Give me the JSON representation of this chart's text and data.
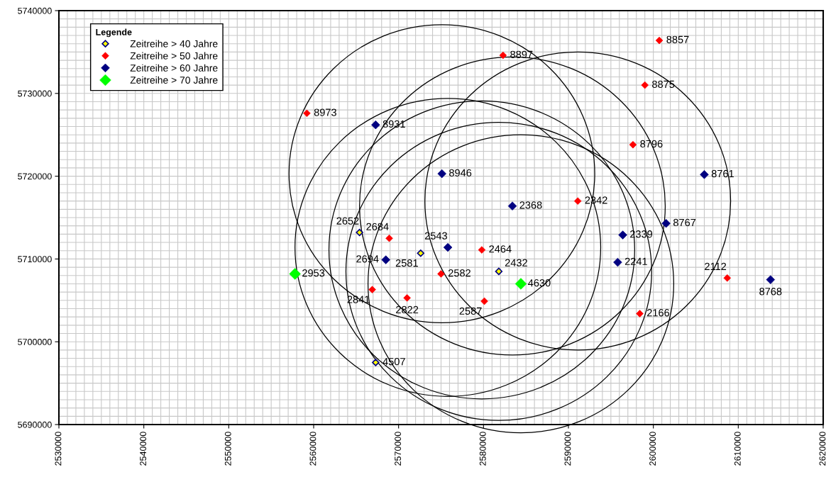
{
  "chart_data": {
    "type": "scatter",
    "legend_title": "Legende",
    "legend": "top left",
    "grid": true,
    "marker": "diamond",
    "xlim": [
      2530000,
      2620000
    ],
    "ylim": [
      5690000,
      5740000
    ],
    "xticks": [
      2530000,
      {
        "value": 2531000,
        "label": null
      },
      {
        "value": 2532000,
        "label": null
      },
      {
        "value": 2533000,
        "label": null
      },
      {
        "value": 2534000,
        "label": null
      },
      {
        "value": 2535000,
        "label": null
      },
      {
        "value": 2536000,
        "label": null
      },
      {
        "value": 2537000,
        "label": null
      },
      {
        "value": 2538000,
        "label": null
      },
      {
        "value": 2539000,
        "label": null
      },
      2540000,
      {
        "value": 2541000,
        "label": null
      },
      {
        "value": 2542000,
        "label": null
      },
      {
        "value": 2543000,
        "label": null
      },
      {
        "value": 2544000,
        "label": null
      },
      {
        "value": 2545000,
        "label": null
      },
      {
        "value": 2546000,
        "label": null
      },
      {
        "value": 2547000,
        "label": null
      },
      {
        "value": 2548000,
        "label": null
      },
      {
        "value": 2549000,
        "label": null
      },
      2550000,
      {
        "value": 2551000,
        "label": null
      },
      {
        "value": 2552000,
        "label": null
      },
      {
        "value": 2553000,
        "label": null
      },
      {
        "value": 2554000,
        "label": null
      },
      {
        "value": 2555000,
        "label": null
      },
      {
        "value": 2556000,
        "label": null
      },
      {
        "value": 2557000,
        "label": null
      },
      {
        "value": 2558000,
        "label": null
      },
      {
        "value": 2559000,
        "label": null
      },
      2560000,
      {
        "value": 2561000,
        "label": null
      },
      {
        "value": 2562000,
        "label": null
      },
      {
        "value": 2563000,
        "label": null
      },
      {
        "value": 2564000,
        "label": null
      },
      {
        "value": 2565000,
        "label": null
      },
      {
        "value": 2566000,
        "label": null
      },
      {
        "value": 2567000,
        "label": null
      },
      {
        "value": 2568000,
        "label": null
      },
      {
        "value": 2569000,
        "label": null
      },
      2570000,
      {
        "value": 2571000,
        "label": null
      },
      {
        "value": 2572000,
        "label": null
      },
      {
        "value": 2573000,
        "label": null
      },
      {
        "value": 2574000,
        "label": null
      },
      {
        "value": 2575000,
        "label": null
      },
      {
        "value": 2576000,
        "label": null
      },
      {
        "value": 2577000,
        "label": null
      },
      {
        "value": 2578000,
        "label": null
      },
      {
        "value": 2579000,
        "label": null
      },
      2580000,
      {
        "value": 2581000,
        "label": null
      },
      {
        "value": 2582000,
        "label": null
      },
      {
        "value": 2583000,
        "label": null
      },
      {
        "value": 2584000,
        "label": null
      },
      {
        "value": 2585000,
        "label": null
      },
      {
        "value": 2586000,
        "label": null
      },
      {
        "value": 2587000,
        "label": null
      },
      {
        "value": 2588000,
        "label": null
      },
      {
        "value": 2589000,
        "label": null
      },
      2590000,
      {
        "value": 2591000,
        "label": null
      },
      {
        "value": 2592000,
        "label": null
      },
      {
        "value": 2593000,
        "label": null
      },
      {
        "value": 2594000,
        "label": null
      },
      {
        "value": 2595000,
        "label": null
      },
      {
        "value": 2596000,
        "label": null
      },
      {
        "value": 2597000,
        "label": null
      },
      {
        "value": 2598000,
        "label": null
      },
      {
        "value": 2599000,
        "label": null
      },
      2600000,
      {
        "value": 2601000,
        "label": null
      },
      {
        "value": 2602000,
        "label": null
      },
      {
        "value": 2603000,
        "label": null
      },
      {
        "value": 2604000,
        "label": null
      },
      {
        "value": 2605000,
        "label": null
      },
      {
        "value": 2606000,
        "label": null
      },
      {
        "value": 2607000,
        "label": null
      },
      {
        "value": 2608000,
        "label": null
      },
      {
        "value": 2609000,
        "label": null
      },
      2610000,
      {
        "value": 2611000,
        "label": null
      },
      {
        "value": 2612000,
        "label": null
      },
      {
        "value": 2613000,
        "label": null
      },
      {
        "value": 2614000,
        "label": null
      },
      {
        "value": 2615000,
        "label": null
      },
      {
        "value": 2616000,
        "label": null
      },
      {
        "value": 2617000,
        "label": null
      },
      {
        "value": 2618000,
        "label": null
      },
      {
        "value": 2619000,
        "label": null
      },
      2620000
    ],
    "yticks": [
      5690000,
      {
        "value": 5691000,
        "label": null
      },
      {
        "value": 5692000,
        "label": null
      },
      {
        "value": 5693000,
        "label": null
      },
      {
        "value": 5694000,
        "label": null
      },
      {
        "value": 5695000,
        "label": null
      },
      {
        "value": 5696000,
        "label": null
      },
      {
        "value": 5697000,
        "label": null
      },
      {
        "value": 5698000,
        "label": null
      },
      {
        "value": 5699000,
        "label": null
      },
      5700000,
      {
        "value": 5701000,
        "label": null
      },
      {
        "value": 5702000,
        "label": null
      },
      {
        "value": 5703000,
        "label": null
      },
      {
        "value": 5704000,
        "label": null
      },
      {
        "value": 5705000,
        "label": null
      },
      {
        "value": 5706000,
        "label": null
      },
      {
        "value": 5707000,
        "label": null
      },
      {
        "value": 5708000,
        "label": null
      },
      {
        "value": 5709000,
        "label": null
      },
      5710000,
      {
        "value": 5711000,
        "label": null
      },
      {
        "value": 5712000,
        "label": null
      },
      {
        "value": 5713000,
        "label": null
      },
      {
        "value": 5714000,
        "label": null
      },
      {
        "value": 5715000,
        "label": null
      },
      {
        "value": 5716000,
        "label": null
      },
      {
        "value": 5717000,
        "label": null
      },
      {
        "value": 5718000,
        "label": null
      },
      {
        "value": 5719000,
        "label": null
      },
      5720000,
      {
        "value": 5721000,
        "label": null
      },
      {
        "value": 5722000,
        "label": null
      },
      {
        "value": 5723000,
        "label": null
      },
      {
        "value": 5724000,
        "label": null
      },
      {
        "value": 5725000,
        "label": null
      },
      {
        "value": 5726000,
        "label": null
      },
      {
        "value": 5727000,
        "label": null
      },
      {
        "value": 5728000,
        "label": null
      },
      {
        "value": 5729000,
        "label": null
      },
      5730000,
      {
        "value": 5731000,
        "label": null
      },
      {
        "value": 5732000,
        "label": null
      },
      {
        "value": 5733000,
        "label": null
      },
      {
        "value": 5734000,
        "label": null
      },
      {
        "value": 5735000,
        "label": null
      },
      {
        "value": 5736000,
        "label": null
      },
      {
        "value": 5737000,
        "label": null
      },
      {
        "value": 5738000,
        "label": null
      },
      {
        "value": 5739000,
        "label": null
      },
      5740000
    ],
    "series": [
      {
        "name": "Zeitreihe > 40 Jahre",
        "color": "#ffff00",
        "x": [
          2565400,
          2572600,
          2581800,
          2567300
        ],
        "values": [
          5713200,
          5710700,
          5708500,
          5697500
        ]
      },
      {
        "name": "Zeitreihe > 50 Jahre",
        "color": "#ff0000",
        "x": [
          2582300,
          2600700,
          2599000,
          2559200,
          2597600,
          2591100,
          2568900,
          2579800,
          2575000,
          2608700,
          2566900,
          2571000,
          2580100,
          2598400
        ],
        "values": [
          5734600,
          5736400,
          5731000,
          5727600,
          5723800,
          5717000,
          5712500,
          5711100,
          5708200,
          5707700,
          5706300,
          5705300,
          5704900,
          5703400
        ]
      },
      {
        "name": "Zeitreihe > 60 Jahre",
        "color": "#000080",
        "x": [
          2567300,
          2575100,
          2606000,
          2583400,
          2601500,
          2596400,
          2575800,
          2568500,
          2595800,
          2613800
        ],
        "values": [
          5726200,
          5720300,
          5720200,
          5716400,
          5714300,
          5712900,
          5711400,
          5709900,
          5709600,
          5707500
        ]
      },
      {
        "name": "Zeitreihe > 70 Jahre",
        "color": "#00ff00",
        "x": [
          2557800,
          2584400
        ],
        "values": [
          5708200,
          5707000
        ]
      }
    ],
    "annotations": [
      {
        "text": "2652",
        "x": 2565400,
        "y": 5713200
      },
      {
        "text": "2581",
        "x": 2572600,
        "y": 5710700
      },
      {
        "text": "2432",
        "x": 2581800,
        "y": 5708500
      },
      {
        "text": "4507",
        "x": 2567300,
        "y": 5697500
      },
      {
        "text": "8897",
        "x": 2582300,
        "y": 5734600
      },
      {
        "text": "8857",
        "x": 2600700,
        "y": 5736400
      },
      {
        "text": "8875",
        "x": 2599000,
        "y": 5731000
      },
      {
        "text": "8973",
        "x": 2559200,
        "y": 5727600
      },
      {
        "text": "8796",
        "x": 2597600,
        "y": 5723800
      },
      {
        "text": "2342",
        "x": 2591100,
        "y": 5717000
      },
      {
        "text": "2684",
        "x": 2568900,
        "y": 5712500
      },
      {
        "text": "2464",
        "x": 2579800,
        "y": 5711100
      },
      {
        "text": "2582",
        "x": 2575000,
        "y": 5708200
      },
      {
        "text": "2112",
        "x": 2608700,
        "y": 5707700
      },
      {
        "text": "2841",
        "x": 2566900,
        "y": 5706300
      },
      {
        "text": "2822",
        "x": 2571000,
        "y": 5705300
      },
      {
        "text": "2587",
        "x": 2580100,
        "y": 5704900
      },
      {
        "text": "2166",
        "x": 2598400,
        "y": 5703400
      },
      {
        "text": "8931",
        "x": 2567300,
        "y": 5726200
      },
      {
        "text": "8946",
        "x": 2575100,
        "y": 5720300
      },
      {
        "text": "8761",
        "x": 2606000,
        "y": 5720200
      },
      {
        "text": "2368",
        "x": 2583400,
        "y": 5716400
      },
      {
        "text": "8767",
        "x": 2601500,
        "y": 5714300
      },
      {
        "text": "2339",
        "x": 2596400,
        "y": 5712900
      },
      {
        "text": "2543",
        "x": 2575800,
        "y": 5711400
      },
      {
        "text": "2694",
        "x": 2568500,
        "y": 5709900
      },
      {
        "text": "2241",
        "x": 2595800,
        "y": 5709600
      },
      {
        "text": "8768",
        "x": 2613800,
        "y": 5707500
      },
      {
        "text": "2953",
        "x": 2557800,
        "y": 5708200
      },
      {
        "text": "4630",
        "x": 2584400,
        "y": 5707000
      }
    ]
  }
}
